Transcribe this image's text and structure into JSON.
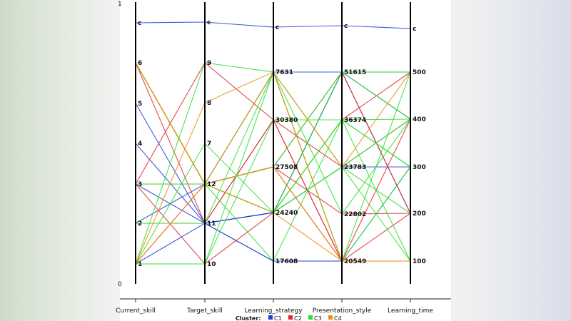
{
  "chart_data": {
    "type": "parallel-coordinates",
    "legend": {
      "title": "Cluster:",
      "placement": "bottom-center"
    },
    "clusters": [
      {
        "name": "C1",
        "color": "#1f3fd6"
      },
      {
        "name": "C2",
        "color": "#e0282e"
      },
      {
        "name": "C3",
        "color": "#2ee02e"
      },
      {
        "name": "C4",
        "color": "#ee8a10"
      }
    ],
    "frame_ticks": {
      "top": "1",
      "bottom": "0"
    },
    "axes": [
      {
        "name": "Current_skill",
        "ticks": [
          "1",
          "2",
          "3",
          "4",
          "5",
          "6",
          "c"
        ]
      },
      {
        "name": "Target_skill",
        "ticks": [
          "10",
          "11",
          "12",
          "7",
          "8",
          "9",
          "c"
        ]
      },
      {
        "name": "Learning_strategy",
        "ticks": [
          "17608",
          "24240",
          "27508",
          "30380",
          "7631",
          "c"
        ]
      },
      {
        "name": "Presentation_style",
        "ticks": [
          "20549",
          "22802",
          "23783",
          "36374",
          "51615",
          "c"
        ]
      },
      {
        "name": "Learning_time",
        "ticks": [
          "100",
          "200",
          "300",
          "400",
          "500",
          "c"
        ]
      }
    ],
    "lines": [
      {
        "cluster": "C1",
        "values": [
          "c",
          "c",
          "c",
          "c",
          "c"
        ]
      },
      {
        "cluster": "C1",
        "values": [
          "4",
          "11",
          "24240",
          "51615",
          "500"
        ]
      },
      {
        "cluster": "C1",
        "values": [
          "5",
          "11",
          "24240",
          "51615",
          "400"
        ]
      },
      {
        "cluster": "C1",
        "values": [
          "2",
          "11",
          "17608",
          "20549",
          "100"
        ]
      },
      {
        "cluster": "C1",
        "values": [
          "2",
          "12",
          "7631",
          "51615",
          "500"
        ]
      },
      {
        "cluster": "C1",
        "values": [
          "3",
          "11",
          "24240",
          "23783",
          "300"
        ]
      },
      {
        "cluster": "C1",
        "values": [
          "2",
          "11",
          "24240",
          "51615",
          "200"
        ]
      },
      {
        "cluster": "C1",
        "values": [
          "1",
          "11",
          "17608",
          "20549",
          "300"
        ]
      },
      {
        "cluster": "C2",
        "values": [
          "3",
          "9",
          "30380",
          "20549",
          "200"
        ]
      },
      {
        "cluster": "C2",
        "values": [
          "3",
          "12",
          "27508",
          "22802",
          "200"
        ]
      },
      {
        "cluster": "C2",
        "values": [
          "2",
          "11",
          "30380",
          "20549",
          "100"
        ]
      },
      {
        "cluster": "C2",
        "values": [
          "6",
          "12",
          "27508",
          "51615",
          "200"
        ]
      },
      {
        "cluster": "C2",
        "values": [
          "1",
          "12",
          "27508",
          "20549",
          "400"
        ]
      },
      {
        "cluster": "C2",
        "values": [
          "3",
          "10",
          "24240",
          "36374",
          "500"
        ]
      },
      {
        "cluster": "C2",
        "values": [
          "6",
          "11",
          "30380",
          "23783",
          "400"
        ]
      },
      {
        "cluster": "C3",
        "values": [
          "6",
          "12",
          "24240",
          "51615",
          "400"
        ]
      },
      {
        "cluster": "C3",
        "values": [
          "6",
          "12",
          "24240",
          "36374",
          "300"
        ]
      },
      {
        "cluster": "C3",
        "values": [
          "6",
          "12",
          "24240",
          "23783",
          "400"
        ]
      },
      {
        "cluster": "C3",
        "values": [
          "6",
          "12",
          "7631",
          "20549",
          "500"
        ]
      },
      {
        "cluster": "C3",
        "values": [
          "6",
          "12",
          "17608",
          "36374",
          "300"
        ]
      },
      {
        "cluster": "C3",
        "values": [
          "1",
          "9",
          "7631",
          "23783",
          "100"
        ]
      },
      {
        "cluster": "C3",
        "values": [
          "1",
          "7",
          "24240",
          "36374",
          "400"
        ]
      },
      {
        "cluster": "C3",
        "values": [
          "1",
          "10",
          "7631",
          "22802",
          "400"
        ]
      },
      {
        "cluster": "C3",
        "values": [
          "2",
          "11",
          "7631",
          "20549",
          "300"
        ]
      },
      {
        "cluster": "C3",
        "values": [
          "3",
          "12",
          "24240",
          "23783",
          "200"
        ]
      },
      {
        "cluster": "C3",
        "values": [
          "1",
          "10",
          "30380",
          "36374",
          "100"
        ]
      },
      {
        "cluster": "C3",
        "values": [
          "6",
          "12",
          "27508",
          "51615",
          "500"
        ]
      },
      {
        "cluster": "C4",
        "values": [
          "6",
          "12",
          "7631",
          "20549",
          "100"
        ]
      },
      {
        "cluster": "C4",
        "values": [
          "1",
          "8",
          "7631",
          "23783",
          "500"
        ]
      },
      {
        "cluster": "C4",
        "values": [
          "6",
          "12",
          "27508",
          "20549",
          "100"
        ]
      },
      {
        "cluster": "C4",
        "values": [
          "1",
          "12",
          "24240",
          "20549",
          "100"
        ]
      }
    ]
  }
}
